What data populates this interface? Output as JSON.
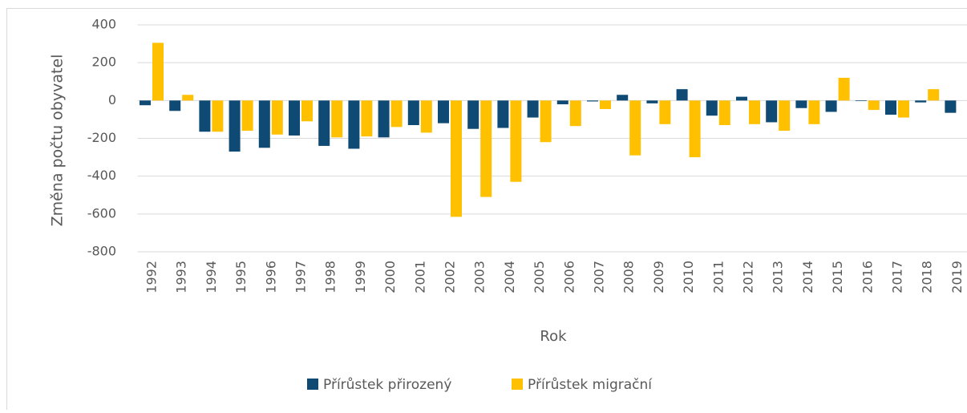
{
  "chart_data": {
    "type": "bar",
    "y_label": "Změna počtu obyvatel",
    "x_label": "Rok",
    "categories": [
      "1992",
      "1993",
      "1994",
      "1995",
      "1996",
      "1997",
      "1998",
      "1999",
      "2000",
      "2001",
      "2002",
      "2003",
      "2004",
      "2005",
      "2006",
      "2007",
      "2008",
      "2009",
      "2010",
      "2011",
      "2012",
      "2013",
      "2014",
      "2015",
      "2016",
      "2017",
      "2018",
      "2019"
    ],
    "series": [
      {
        "name": "Přírůstek přirozený",
        "color": "#0e4a73",
        "values": [
          -25,
          -55,
          -165,
          -270,
          -250,
          -185,
          -240,
          -255,
          -195,
          -130,
          -120,
          -150,
          -145,
          -90,
          -20,
          -5,
          30,
          -15,
          60,
          -80,
          20,
          -115,
          -40,
          -60,
          -3,
          -75,
          -10,
          -65
        ]
      },
      {
        "name": "Přírůstek migrační",
        "color": "#ffc000",
        "values": [
          305,
          30,
          -165,
          -160,
          -180,
          -110,
          -195,
          -190,
          -140,
          -170,
          -615,
          -510,
          -430,
          -220,
          -135,
          -45,
          -290,
          -125,
          -300,
          -130,
          -125,
          -160,
          -125,
          120,
          -50,
          -90,
          60,
          null
        ]
      }
    ],
    "ylim": [
      -800,
      400
    ],
    "yticks": [
      -800,
      -600,
      -400,
      -200,
      0,
      200,
      400
    ],
    "grid": true,
    "legend": "bottom"
  }
}
